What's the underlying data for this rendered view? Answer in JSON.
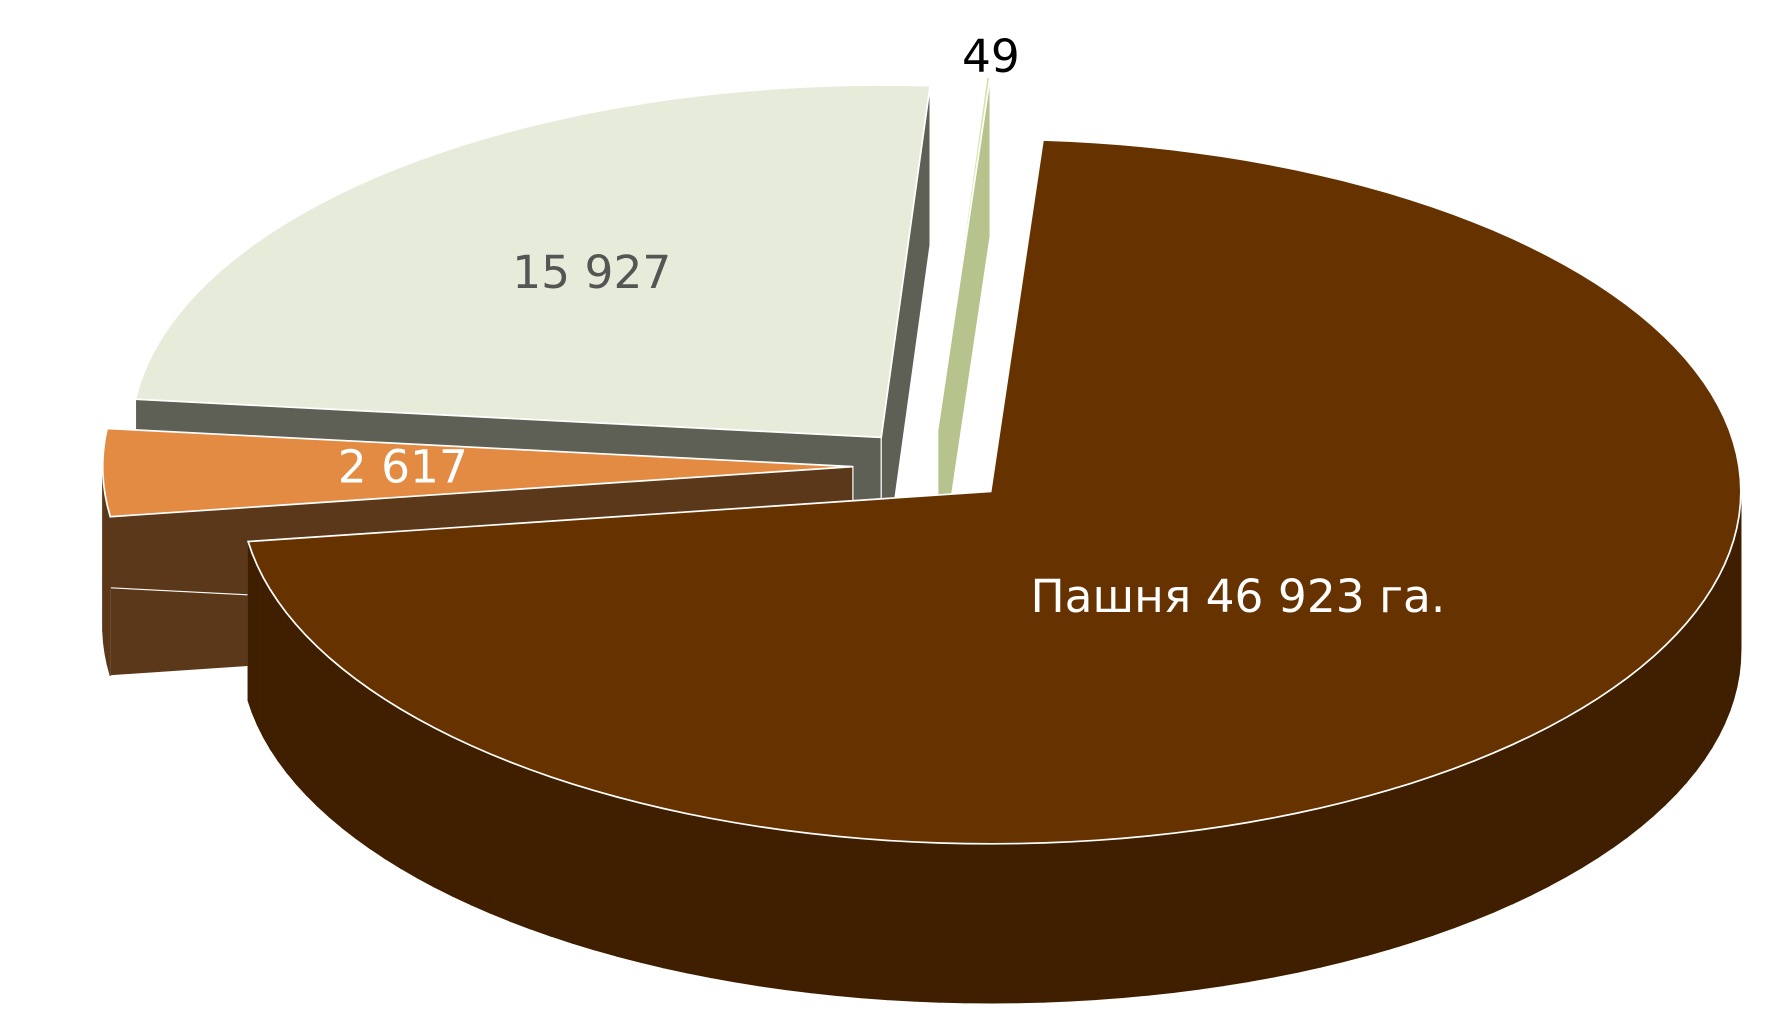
{
  "chart_data": {
    "type": "pie3d",
    "values": [
      46923,
      2617,
      15927,
      49
    ],
    "value_labels": [
      "Пашня 46 923 га.",
      "2 617",
      "15 927",
      "49"
    ],
    "colors": [
      "#663300",
      "#e38b43",
      "#e6ecd9",
      "#d4e3a8"
    ],
    "side_colors": [
      "#3f1f00",
      "#5c381a",
      "#5e5f55",
      "#b7c38c"
    ]
  }
}
